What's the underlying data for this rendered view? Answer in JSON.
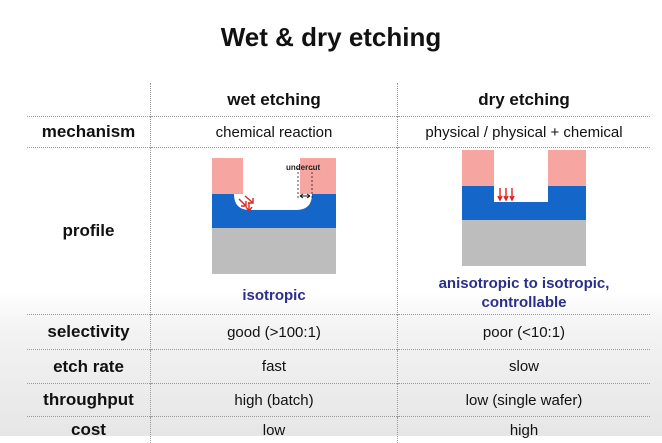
{
  "title": "Wet & dry etching",
  "columns": {
    "wet": "wet etching",
    "dry": "dry etching"
  },
  "rows": {
    "mechanism": {
      "label": "mechanism",
      "wet": "chemical reaction",
      "dry": "physical / physical + chemical"
    },
    "profile": {
      "label": "profile",
      "wet_caption": "isotropic",
      "dry_caption_line1": "anisotropic to isotropic,",
      "dry_caption_line2": "controllable",
      "undercut_label": "undercut"
    },
    "selectivity": {
      "label": "selectivity",
      "wet": "good (>100:1)",
      "dry": "poor (<10:1)"
    },
    "etch_rate": {
      "label": "etch rate",
      "wet": "fast",
      "dry": "slow"
    },
    "throughput": {
      "label": "throughput",
      "wet": "high (batch)",
      "dry": "low (single wafer)"
    },
    "cost": {
      "label": "cost",
      "wet": "low",
      "dry": "high"
    }
  },
  "colors": {
    "mask": "#f6a5a1",
    "film": "#1467c8",
    "substrate": "#bdbdbd",
    "caption": "#2a2f8a",
    "arrow": "#e02020"
  }
}
